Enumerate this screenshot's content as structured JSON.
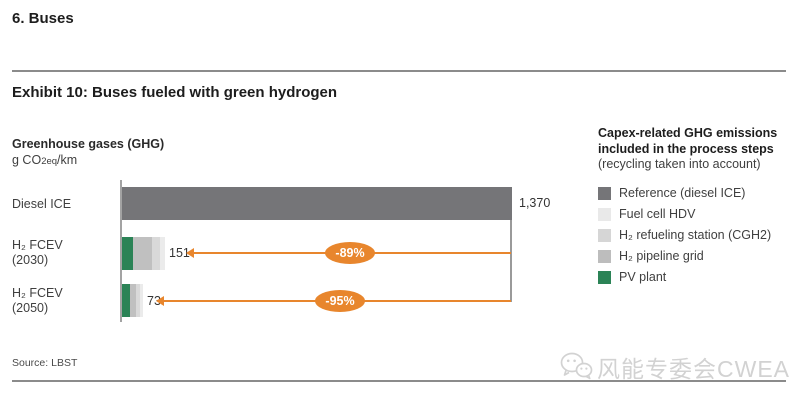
{
  "page": {
    "section_title": "6. Buses",
    "exhibit_title": "Exhibit 10: Buses fueled with green hydrogen",
    "source": "Source: LBST",
    "watermark_text": "风能专委会CWEA"
  },
  "colors": {
    "reference_gray": "#757578",
    "fuel_cell_hdv": "#e9e9e9",
    "refueling_station": "#d6d6d6",
    "pipeline_grid": "#c0c0c0",
    "pv_plant_green": "#2b8356",
    "arrow_orange": "#e8862d",
    "axis_gray": "#a3a3a3"
  },
  "chart_data": {
    "type": "bar",
    "orientation": "horizontal-stacked",
    "title": "Greenhouse gases (GHG)",
    "unit_prefix": "g CO",
    "unit_sub": "2eq",
    "unit_suffix": "/km",
    "xlim": [
      0,
      1370
    ],
    "grid": false,
    "legend_position": "right",
    "rows": [
      {
        "label": "Diesel ICE",
        "sublabel": "",
        "value": 1370,
        "value_label": "1,370",
        "reduction": "",
        "segments": [
          {
            "name": "Reference (diesel ICE)",
            "value": 1370,
            "color": "#757578"
          }
        ]
      },
      {
        "label": "H₂ FCEV",
        "sublabel": "(2030)",
        "value": 151,
        "value_label": "151",
        "reduction": "-89%",
        "segments": [
          {
            "name": "PV plant",
            "value": 39,
            "color": "#2b8356"
          },
          {
            "name": "H₂ pipeline grid",
            "value": 67,
            "color": "#c0c0c0"
          },
          {
            "name": "H₂ refueling station (CGH2)",
            "value": 28,
            "color": "#d9d9d9"
          },
          {
            "name": "Fuel cell HDV",
            "value": 17,
            "color": "#ebebeb"
          }
        ]
      },
      {
        "label": "H₂ FCEV",
        "sublabel": "(2050)",
        "value": 73,
        "value_label": "73",
        "reduction": "-95%",
        "segments": [
          {
            "name": "PV plant",
            "value": 28,
            "color": "#2b8356"
          },
          {
            "name": "H₂ pipeline grid",
            "value": 21,
            "color": "#c0c0c0"
          },
          {
            "name": "H₂ refueling station (CGH2)",
            "value": 14,
            "color": "#d9d9d9"
          },
          {
            "name": "Fuel cell HDV",
            "value": 10,
            "color": "#ebebeb"
          }
        ]
      }
    ]
  },
  "legend": {
    "title": "Capex-related GHG emissions included in the process steps",
    "subtitle": "(recycling taken into account)",
    "items": [
      {
        "label": "Reference (diesel ICE)",
        "color": "#757578"
      },
      {
        "label": "Fuel cell HDV",
        "color": "#e9e9e9"
      },
      {
        "label": "H₂ refueling station (CGH2)",
        "color": "#d6d6d6"
      },
      {
        "label": "H₂ pipeline grid",
        "color": "#bdbdbd"
      },
      {
        "label": "PV plant",
        "color": "#2b8356"
      }
    ]
  }
}
